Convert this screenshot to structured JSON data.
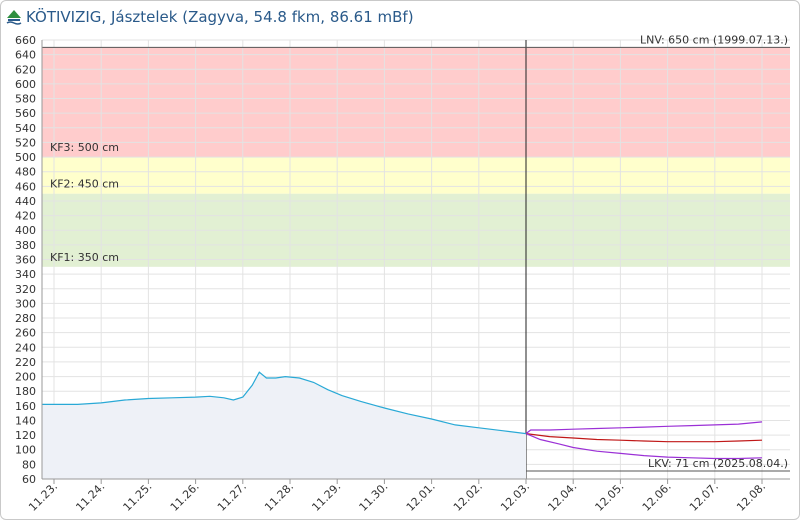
{
  "header": {
    "title": "KÖTIVIZIG, Jásztelek (Zagyva, 54.8 fkm, 86.61 mBf)"
  },
  "colors": {
    "observed": "#29a9d6",
    "observed_fill": "#eef1f7",
    "forecast_upper": "#9b30d6",
    "forecast_mid": "#c01818",
    "forecast_lower": "#9b30d6",
    "zone_kf3": "#ffcccc",
    "zone_kf2": "#ffffcc",
    "zone_kf1": "#e2f0d3",
    "grid": "#e3e3e3",
    "text": "#333333"
  },
  "chart_data": {
    "type": "line",
    "title": "KÖTIVIZIG, Jásztelek (Zagyva, 54.8 fkm, 86.61 mBf)",
    "xlabel": "",
    "ylabel": "",
    "ylim": [
      60,
      660
    ],
    "y_ticks": [
      60,
      80,
      100,
      120,
      140,
      160,
      180,
      200,
      220,
      240,
      260,
      280,
      300,
      320,
      340,
      360,
      380,
      400,
      420,
      440,
      460,
      480,
      500,
      520,
      540,
      560,
      580,
      600,
      620,
      640,
      660
    ],
    "x_ticks": [
      "11.23.",
      "11.24.",
      "11.25.",
      "11.26.",
      "11.27.",
      "11.28.",
      "11.29.",
      "11.30.",
      "12.01.",
      "12.02.",
      "12.03.",
      "12.04.",
      "12.05.",
      "12.06.",
      "12.07.",
      "12.08."
    ],
    "grid": true,
    "legend": "none",
    "now_tick": "12.03.",
    "zones": [
      {
        "label": "KF1: 350 cm",
        "from": 350,
        "to": 450,
        "color_key": "zone_kf1"
      },
      {
        "label": "KF2: 450 cm",
        "from": 450,
        "to": 500,
        "color_key": "zone_kf2"
      },
      {
        "label": "KF3: 500 cm",
        "from": 500,
        "to": 650,
        "color_key": "zone_kf3"
      }
    ],
    "reference_lines": [
      {
        "label": "LNV: 650 cm (1999.07.13.)",
        "value": 650
      },
      {
        "label": "LKV: 71 cm (2025.08.04.)",
        "value": 71
      }
    ],
    "series": [
      {
        "color_key": "observed",
        "filled": true,
        "points": [
          [
            0,
            162
          ],
          [
            0.5,
            162
          ],
          [
            1.0,
            164
          ],
          [
            1.5,
            168
          ],
          [
            2.0,
            170
          ],
          [
            2.5,
            171
          ],
          [
            3.0,
            172
          ],
          [
            3.3,
            173
          ],
          [
            3.6,
            171
          ],
          [
            3.8,
            168
          ],
          [
            4.0,
            172
          ],
          [
            4.2,
            188
          ],
          [
            4.35,
            206
          ],
          [
            4.5,
            198
          ],
          [
            4.7,
            198
          ],
          [
            4.9,
            200
          ],
          [
            5.2,
            198
          ],
          [
            5.5,
            192
          ],
          [
            5.8,
            182
          ],
          [
            6.1,
            174
          ],
          [
            6.5,
            166
          ],
          [
            7.0,
            157
          ],
          [
            7.5,
            149
          ],
          [
            8.0,
            142
          ],
          [
            8.5,
            134
          ],
          [
            9.0,
            130
          ],
          [
            9.5,
            126
          ],
          [
            10.0,
            122
          ]
        ]
      },
      {
        "color_key": "forecast_upper",
        "points": [
          [
            10.0,
            122
          ],
          [
            10.1,
            127
          ],
          [
            10.5,
            127
          ],
          [
            11.0,
            128
          ],
          [
            11.5,
            129
          ],
          [
            12.0,
            130
          ],
          [
            12.5,
            131
          ],
          [
            13.0,
            132
          ],
          [
            13.5,
            133
          ],
          [
            14.0,
            134
          ],
          [
            14.5,
            135
          ],
          [
            15.0,
            138
          ]
        ]
      },
      {
        "color_key": "forecast_mid",
        "points": [
          [
            10.0,
            122
          ],
          [
            10.5,
            118
          ],
          [
            11.0,
            116
          ],
          [
            11.5,
            114
          ],
          [
            12.0,
            113
          ],
          [
            12.5,
            112
          ],
          [
            13.0,
            111
          ],
          [
            13.5,
            111
          ],
          [
            14.0,
            111
          ],
          [
            14.5,
            112
          ],
          [
            15.0,
            113
          ]
        ]
      },
      {
        "color_key": "forecast_lower",
        "points": [
          [
            10.0,
            122
          ],
          [
            10.3,
            114
          ],
          [
            10.7,
            108
          ],
          [
            11.0,
            103
          ],
          [
            11.5,
            98
          ],
          [
            12.0,
            95
          ],
          [
            12.5,
            92
          ],
          [
            13.0,
            90
          ],
          [
            13.5,
            89
          ],
          [
            14.0,
            88
          ],
          [
            14.5,
            88
          ],
          [
            15.0,
            89
          ]
        ]
      }
    ]
  }
}
